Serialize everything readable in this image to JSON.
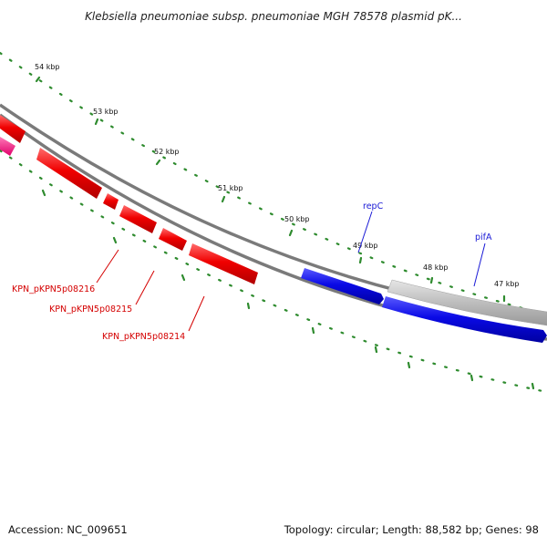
{
  "header": {
    "title": "Klebsiella pneumoniae subsp. pneumoniae MGH 78578 plasmid pK..."
  },
  "footer": {
    "accession": "Accession: NC_009651",
    "topology": "Topology: circular; Length: 88,582 bp; Genes: 98"
  },
  "map": {
    "kbp_ticks": [
      {
        "label": "54 kbp"
      },
      {
        "label": "53 kbp"
      },
      {
        "label": "52 kbp"
      },
      {
        "label": "51 kbp"
      },
      {
        "label": "50 kbp"
      },
      {
        "label": "49 kbp"
      },
      {
        "label": "48 kbp"
      },
      {
        "label": "47 kbp"
      }
    ],
    "gene_labels": [
      {
        "text": "repC",
        "color": "#1a1ad6"
      },
      {
        "text": "pifA",
        "color": "#1a1ad6"
      },
      {
        "text": "KPN_pKPN5p08216",
        "color": "#d40000"
      },
      {
        "text": "KPN_pKPN5p08215",
        "color": "#d40000"
      },
      {
        "text": "KPN_pKPN5p08214",
        "color": "#d40000"
      }
    ],
    "colors": {
      "backbone": "#7a7a7a",
      "tick_dots": "#2e8b2e",
      "red_genes": "#ee0000",
      "blue_genes": "#0a0adc",
      "grey_genes": "#b8b8b8",
      "pink_genes": "#ff2a8a"
    }
  }
}
